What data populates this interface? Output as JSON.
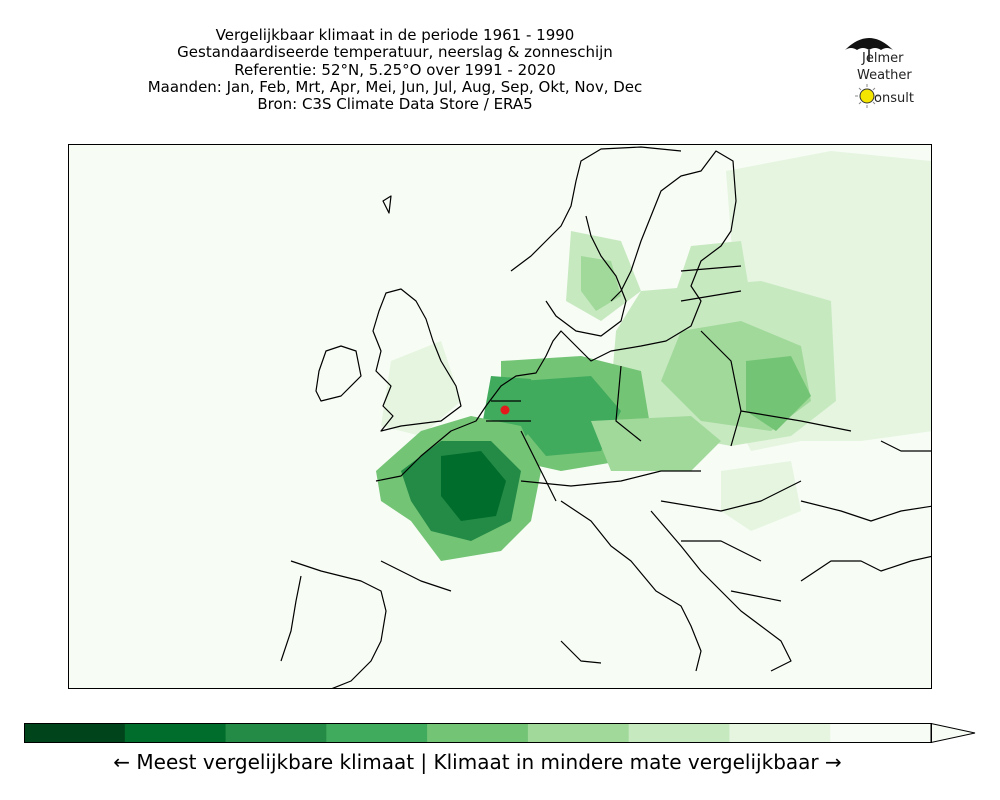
{
  "title_lines": [
    "Vergelijkbaar klimaat in de periode 1961 - 1990",
    "Gestandaardiseerde temperatuur, neerslag & zonneschijn",
    "Referentie: 52°N, 5.25°O over 1991 - 2020",
    "Maanden: Jan, Feb, Mrt, Apr, Mei, Jun, Jul, Aug, Sep, Okt, Nov, Dec",
    "Bron: C3S Climate Data Store / ERA5"
  ],
  "logo": {
    "line1": "Jelmer",
    "line2": "Weather",
    "line3": "onsult",
    "icons": [
      "umbrella-icon",
      "sun-icon"
    ]
  },
  "reference_point": {
    "lat": 52,
    "lon": 5.25,
    "color": "#e31a1c"
  },
  "colorbar": {
    "colors": [
      "#00441b",
      "#006d2c",
      "#238b45",
      "#41ab5d",
      "#74c476",
      "#a1d99b",
      "#c7e9c0",
      "#e5f5e0",
      "#f7fcf5"
    ],
    "extend": "max",
    "caption": "← Meest vergelijkbare klimaat  |  Klimaat in mindere mate vergelijkbaar →"
  },
  "map_colors": {
    "background": "#f7fcf5",
    "coastline": "#000000"
  }
}
